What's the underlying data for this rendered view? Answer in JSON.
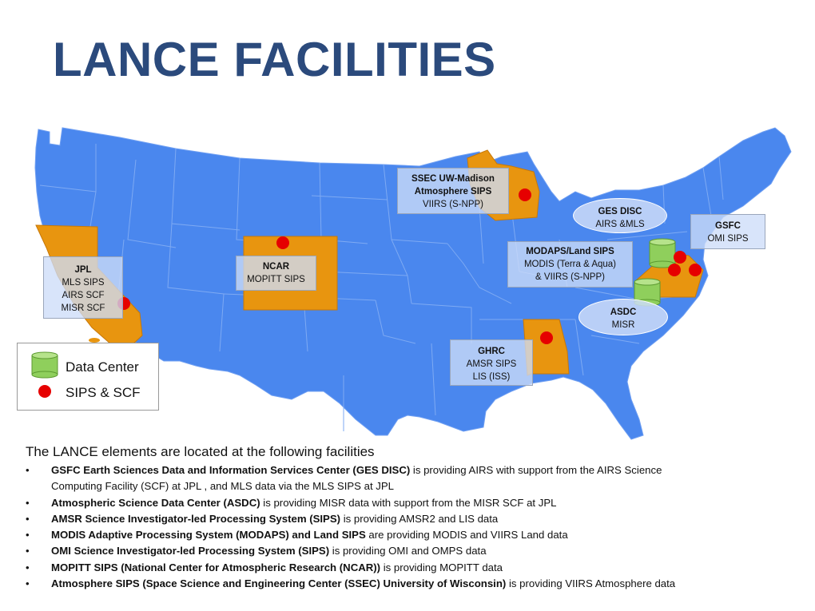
{
  "title": "LANCE FACILITIES",
  "colors": {
    "map_blue": "#4a87ee",
    "highlight_orange": "#e8950f",
    "data_center_green": "#8fcf5c",
    "sips_red": "#e60000",
    "title_blue": "#2b4a7c"
  },
  "facilities": [
    {
      "name": "JPL",
      "lines": [
        "MLS SIPS",
        "AIRS SCF",
        "MISR SCF"
      ]
    },
    {
      "name": "NCAR",
      "lines": [
        "MOPITT SIPS"
      ]
    },
    {
      "name": "SSEC UW-Madison",
      "lines_bold": [
        "Atmosphere SIPS"
      ],
      "lines": [
        "VIIRS (S-NPP)"
      ]
    },
    {
      "name": "GES DISC",
      "lines": [
        "AIRS &MLS"
      ]
    },
    {
      "name": "GSFC",
      "lines": [
        "OMI SIPS"
      ]
    },
    {
      "name": "MODAPS/Land SIPS",
      "lines": [
        "MODIS (Terra & Aqua)",
        "& VIIRS (S-NPP)"
      ]
    },
    {
      "name": "ASDC",
      "lines": [
        "MISR"
      ]
    },
    {
      "name": "GHRC",
      "lines": [
        "AMSR SIPS",
        "LIS (ISS)"
      ]
    }
  ],
  "legend": {
    "data_center": "Data Center",
    "sips_scf": "SIPS & SCF"
  },
  "description": {
    "heading": "The LANCE elements are located at the following facilities",
    "items": [
      {
        "bold": "GSFC Earth Sciences Data and Information Services Center (GES DISC)",
        "text": " is providing AIRS with support from the AIRS Science",
        "text2": "Computing Facility (SCF) at JPL , and MLS data via the MLS SIPS at JPL"
      },
      {
        "bold": "Atmospheric Science Data Center (ASDC)",
        "text": " is providing MISR data with support from the MISR SCF at JPL"
      },
      {
        "bold": "AMSR Science Investigator-led Processing System (SIPS)",
        "text": " is providing AMSR2 and LIS data"
      },
      {
        "bold": "MODIS Adaptive Processing System (MODAPS) and Land SIPS",
        "text": " are providing MODIS and VIIRS Land data"
      },
      {
        "bold": "OMI Science Investigator-led Processing System (SIPS)",
        "text": " is providing OMI and OMPS data"
      },
      {
        "bold": "MOPITT SIPS (National Center for Atmospheric Research (NCAR))",
        "text": " is providing MOPITT data"
      },
      {
        "bold": "Atmosphere SIPS (Space Science and Engineering Center (SSEC) University of Wisconsin)",
        "text": " is providing VIIRS Atmosphere data"
      }
    ]
  }
}
